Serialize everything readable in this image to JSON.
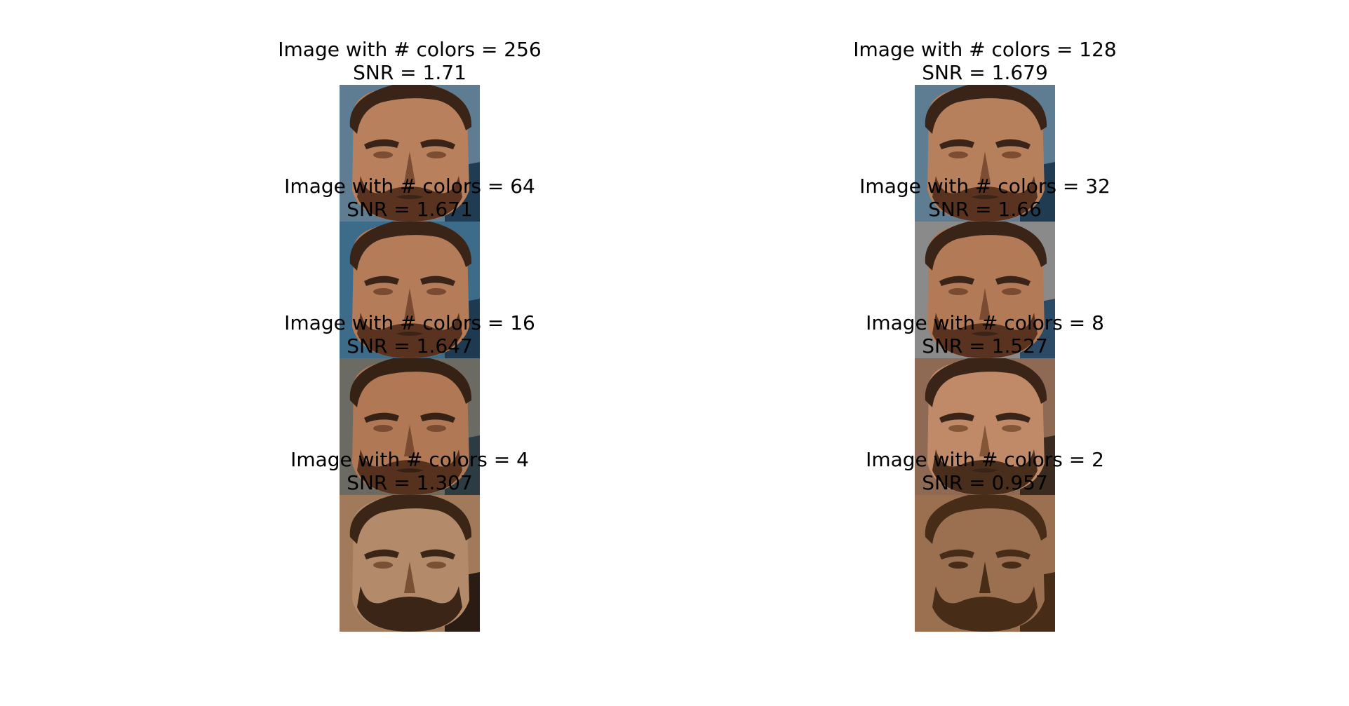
{
  "panels": [
    {
      "title": "Image with # colors = 256",
      "snr": "SNR = 1.71",
      "colors": 256,
      "palette": {
        "bg": "#5e7c92",
        "skin": "#b8805c",
        "hair": "#3a2418",
        "shadow": "#7c4d33",
        "beard": "#5a3320",
        "jersey": "#1f3c52",
        "edge": "#2a4a60"
      }
    },
    {
      "title": "Image with # colors = 128",
      "snr": "SNR = 1.679",
      "colors": 128,
      "palette": {
        "bg": "#5f7d92",
        "skin": "#b7805c",
        "hair": "#3a2418",
        "shadow": "#7c4d33",
        "beard": "#5a3320",
        "jersey": "#203c52",
        "edge": "#2a4a60"
      }
    },
    {
      "title": "Image with # colors = 64",
      "snr": "SNR = 1.671",
      "colors": 64,
      "palette": {
        "bg": "#3d6b8a",
        "skin": "#b47c58",
        "hair": "#3a2418",
        "shadow": "#7a4b31",
        "beard": "#5a3320",
        "jersey": "#1d3a50",
        "edge": "#2f5878"
      }
    },
    {
      "title": "Image with # colors = 32",
      "snr": "SNR = 1.66",
      "colors": 32,
      "palette": {
        "bg": "#8a8a8a",
        "skin": "#b27a56",
        "hair": "#3a2418",
        "shadow": "#7a4b31",
        "beard": "#5a3320",
        "jersey": "#2b4a66",
        "edge": "#5b7386"
      }
    },
    {
      "title": "Image with # colors = 16",
      "snr": "SNR = 1.647",
      "colors": 16,
      "palette": {
        "bg": "#6b6b63",
        "skin": "#b07854",
        "hair": "#362214",
        "shadow": "#7a4b31",
        "beard": "#55311e",
        "jersey": "#2d3b43",
        "edge": "#58544d"
      }
    },
    {
      "title": "Image with # colors = 8",
      "snr": "SNR = 1.527",
      "colors": 8,
      "palette": {
        "bg": "#8e6a55",
        "skin": "#c08a68",
        "hair": "#3a2418",
        "shadow": "#845638",
        "beard": "#4a2e1c",
        "jersey": "#3a2a20",
        "edge": "#8e6a55"
      }
    },
    {
      "title": "Image with # colors = 4",
      "snr": "SNR = 1.307",
      "colors": 4,
      "palette": {
        "bg": "#a07a5a",
        "skin": "#b38b6a",
        "hair": "#3a2516",
        "shadow": "#7a5034",
        "beard": "#3a2516",
        "jersey": "#2a1c12",
        "edge": "#a07a5a"
      }
    },
    {
      "title": "Image with # colors = 2",
      "snr": "SNR = 0.957",
      "colors": 2,
      "palette": {
        "bg": "#9a7050",
        "skin": "#9a7050",
        "hair": "#472c18",
        "shadow": "#472c18",
        "beard": "#472c18",
        "jersey": "#472c18",
        "edge": "#9a7050"
      }
    }
  ]
}
